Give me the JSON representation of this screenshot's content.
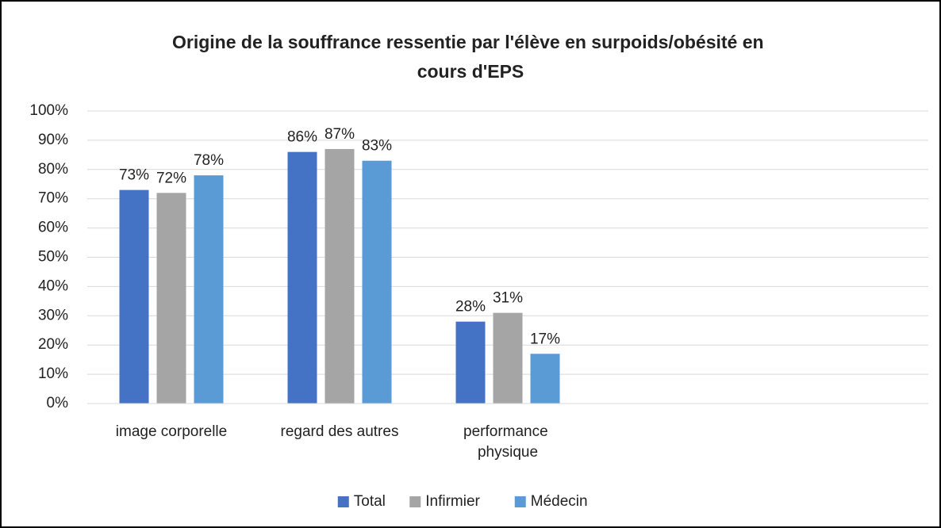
{
  "chart_data": {
    "type": "bar",
    "title": "Origine de la souffrance ressentie par l'élève en surpoids/obésité en cours d'EPS",
    "categories": [
      "image corporelle",
      "regard des autres",
      "performance physique",
      null,
      null
    ],
    "series": [
      {
        "name": "Total",
        "color": "#4472c4",
        "values": [
          73,
          86,
          28,
          null,
          null
        ],
        "value_labels": [
          "73%",
          "86%",
          "28%",
          null,
          null
        ]
      },
      {
        "name": "Infirmier",
        "color": "#a5a5a5",
        "values": [
          72,
          87,
          31,
          null,
          null
        ],
        "value_labels": [
          "72%",
          "87%",
          "31%",
          null,
          null
        ]
      },
      {
        "name": "Médecin",
        "color": "#5b9bd5",
        "values": [
          78,
          83,
          17,
          null,
          null
        ],
        "value_labels": [
          "78%",
          "83%",
          "17%",
          null,
          null
        ]
      }
    ],
    "ylim": [
      0,
      100
    ],
    "yticks": [
      {
        "value": 0,
        "label": "0%"
      },
      {
        "value": 10,
        "label": "10%"
      },
      {
        "value": 20,
        "label": "20%"
      },
      {
        "value": 30,
        "label": "30%"
      },
      {
        "value": 40,
        "label": "40%"
      },
      {
        "value": 50,
        "label": "50%"
      },
      {
        "value": 60,
        "label": "60%"
      },
      {
        "value": 70,
        "label": "70%"
      },
      {
        "value": 80,
        "label": "80%"
      },
      {
        "value": 90,
        "label": "90%"
      },
      {
        "value": 100,
        "label": "100%"
      }
    ],
    "grid": true,
    "legend": "bottom"
  }
}
